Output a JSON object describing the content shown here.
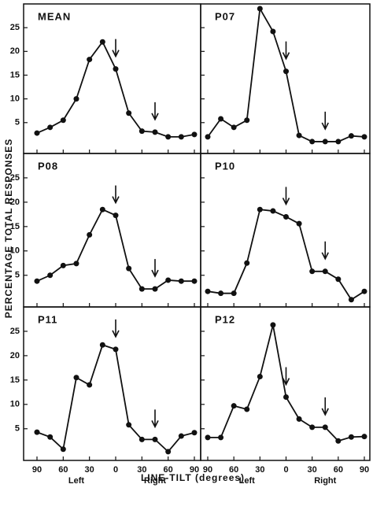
{
  "chart_data": {
    "type": "line",
    "xlabel": "LINE-TILT (degrees)",
    "ylabel": "PERCENTAGE TOTAL RESPONSES",
    "x": [
      -90,
      -75,
      -60,
      -45,
      -30,
      -15,
      0,
      15,
      30,
      45,
      60,
      75,
      90
    ],
    "xlim": [
      -90,
      90
    ],
    "ylim": [
      -1.5,
      30
    ],
    "xticks": [
      {
        "value": -90,
        "label": "90"
      },
      {
        "value": -60,
        "label": "60"
      },
      {
        "value": -30,
        "label": "30"
      },
      0,
      30,
      60,
      90
    ],
    "yticks": [
      5,
      10,
      15,
      20,
      25
    ],
    "color": "#111111",
    "arrows": [
      0,
      45
    ],
    "annotations": [
      {
        "text": "Left",
        "x": -45
      },
      {
        "text": "Right",
        "x": 45
      }
    ],
    "panels": [
      {
        "title": "MEAN",
        "values": [
          2.8,
          4,
          5.5,
          10,
          18.3,
          22,
          16.3,
          7,
          3.2,
          3,
          2,
          2,
          2.5
        ]
      },
      {
        "title": "P07",
        "values": [
          2,
          5.8,
          4,
          5.5,
          29,
          24.2,
          15.8,
          2.3,
          1,
          1,
          1,
          2.2,
          2
        ]
      },
      {
        "title": "P08",
        "values": [
          3.8,
          5,
          7,
          7.4,
          13.3,
          18.5,
          17.3,
          6.4,
          2.2,
          2.2,
          4,
          3.8,
          3.8
        ]
      },
      {
        "title": "P10",
        "values": [
          1.7,
          1.3,
          1.3,
          7.5,
          18.5,
          18.2,
          17,
          15.6,
          5.8,
          5.8,
          4.2,
          0,
          1.7
        ]
      },
      {
        "title": "P11",
        "values": [
          4.3,
          3.3,
          0.8,
          15.5,
          14,
          22.2,
          21.3,
          5.8,
          2.8,
          2.8,
          0.3,
          3.5,
          4.2
        ]
      },
      {
        "title": "P12",
        "values": [
          3.2,
          3.2,
          9.7,
          9,
          15.7,
          26.3,
          11.5,
          7,
          5.3,
          5.3,
          2.5,
          3.3,
          3.4
        ]
      }
    ]
  }
}
